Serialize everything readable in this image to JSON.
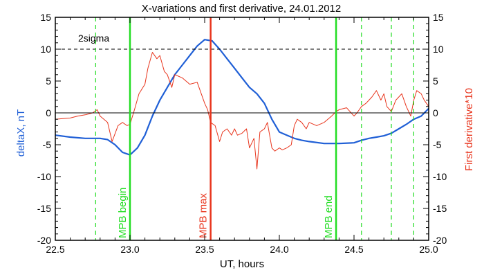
{
  "chart_data": {
    "type": "line",
    "title": "X-variations and first derivative, 24.01.2012",
    "xlabel": "UT, hours",
    "ylabel_left": "deltaX, nT",
    "ylabel_right": "First derivative*10",
    "xlim": [
      22.5,
      25.0
    ],
    "ylim": [
      -20,
      15
    ],
    "x_ticks": [
      "22.5",
      "23.0",
      "23.5",
      "24.0",
      "24.5",
      "25.0"
    ],
    "y_ticks": [
      "15",
      "10",
      "5",
      "0",
      "-5",
      "-10",
      "-15",
      "-20"
    ],
    "colors": {
      "deltaX": "#1f5fd6",
      "derivative": "#e8341c",
      "mpb": "#22dd22",
      "mpb_max": "#e8341c",
      "sigma_line": "#000000",
      "zero_line": "#000000",
      "left_label": "#1f5fd6",
      "right_label": "#e8341c"
    },
    "sigma_label": "2sigma",
    "sigma_level": 10,
    "zero_level": 0,
    "vlines": [
      {
        "x": 23.0,
        "label": "MPB begin",
        "style": "solid",
        "color": "#22dd22"
      },
      {
        "x": 23.54,
        "label": "MPB max",
        "style": "solid",
        "color": "#e8341c"
      },
      {
        "x": 24.38,
        "label": "MPB end",
        "style": "solid",
        "color": "#22dd22"
      },
      {
        "x": 22.77,
        "label": "",
        "style": "dashed",
        "color": "#22dd22"
      },
      {
        "x": 24.55,
        "label": "",
        "style": "dashed",
        "color": "#22dd22"
      },
      {
        "x": 24.75,
        "label": "",
        "style": "dashed",
        "color": "#22dd22"
      },
      {
        "x": 24.9,
        "label": "",
        "style": "dashed",
        "color": "#22dd22"
      }
    ],
    "series": [
      {
        "key": "deltaX",
        "axis": "left",
        "x": [
          22.5,
          22.6,
          22.7,
          22.8,
          22.85,
          22.9,
          22.95,
          23.0,
          23.05,
          23.1,
          23.15,
          23.2,
          23.25,
          23.3,
          23.35,
          23.4,
          23.45,
          23.5,
          23.55,
          23.6,
          23.65,
          23.7,
          23.75,
          23.8,
          23.85,
          23.9,
          23.95,
          24.0,
          24.05,
          24.1,
          24.15,
          24.2,
          24.3,
          24.4,
          24.5,
          24.55,
          24.6,
          24.65,
          24.7,
          24.75,
          24.8,
          24.85,
          24.9,
          24.95,
          25.0
        ],
        "y": [
          -3.5,
          -3.8,
          -4.0,
          -4.0,
          -4.2,
          -5.0,
          -6.2,
          -6.6,
          -5.5,
          -3.5,
          -0.5,
          2.0,
          4.0,
          6.0,
          7.5,
          9.0,
          10.5,
          11.5,
          11.3,
          10.0,
          8.5,
          7.0,
          5.5,
          4.0,
          3.0,
          1.5,
          -1.0,
          -3.0,
          -3.5,
          -4.0,
          -4.3,
          -4.5,
          -4.8,
          -4.8,
          -4.7,
          -4.3,
          -4.0,
          -3.8,
          -3.6,
          -3.2,
          -2.5,
          -1.8,
          -1.0,
          -0.5,
          0.7
        ]
      },
      {
        "key": "derivative",
        "axis": "right",
        "x": [
          22.5,
          22.55,
          22.6,
          22.65,
          22.7,
          22.75,
          22.78,
          22.8,
          22.85,
          22.88,
          22.92,
          22.95,
          22.98,
          23.0,
          23.03,
          23.06,
          23.1,
          23.12,
          23.15,
          23.18,
          23.2,
          23.23,
          23.25,
          23.28,
          23.3,
          23.35,
          23.4,
          23.45,
          23.5,
          23.52,
          23.54,
          23.57,
          23.6,
          23.62,
          23.65,
          23.68,
          23.7,
          23.72,
          23.75,
          23.78,
          23.8,
          23.83,
          23.85,
          23.87,
          23.9,
          23.92,
          23.95,
          23.97,
          24.0,
          24.02,
          24.05,
          24.08,
          24.1,
          24.12,
          24.15,
          24.18,
          24.2,
          24.25,
          24.3,
          24.35,
          24.38,
          24.4,
          24.45,
          24.5,
          24.52,
          24.55,
          24.58,
          24.6,
          24.62,
          24.65,
          24.68,
          24.7,
          24.72,
          24.75,
          24.78,
          24.8,
          24.82,
          24.85,
          24.88,
          24.9,
          24.92,
          24.95,
          24.97,
          25.0
        ],
        "y": [
          -1.0,
          -0.9,
          -0.8,
          -0.5,
          -0.3,
          0.0,
          0.5,
          -0.5,
          -1.5,
          -4.5,
          -2.0,
          -1.5,
          -2.0,
          -1.8,
          0.5,
          3.0,
          4.5,
          7.0,
          9.5,
          8.5,
          9.0,
          6.5,
          6.0,
          4.0,
          6.0,
          5.5,
          4.5,
          4.8,
          1.5,
          0.5,
          -1.5,
          -2.0,
          -4.5,
          -3.0,
          -2.5,
          -3.5,
          -2.5,
          -3.5,
          -3.2,
          -2.5,
          -5.5,
          -4.0,
          -8.8,
          -3.0,
          -2.5,
          -1.5,
          -5.5,
          -6.0,
          -5.5,
          -5.8,
          -5.5,
          -5.0,
          -2.0,
          -1.0,
          -1.5,
          -2.5,
          -1.5,
          -2.0,
          -1.5,
          -0.5,
          0.2,
          0.5,
          0.8,
          -0.5,
          0.0,
          1.0,
          1.5,
          2.0,
          2.5,
          3.5,
          2.0,
          3.0,
          1.0,
          0.2,
          2.0,
          2.5,
          3.0,
          1.0,
          -0.5,
          2.0,
          3.5,
          3.0,
          2.0,
          1.0
        ]
      }
    ]
  }
}
